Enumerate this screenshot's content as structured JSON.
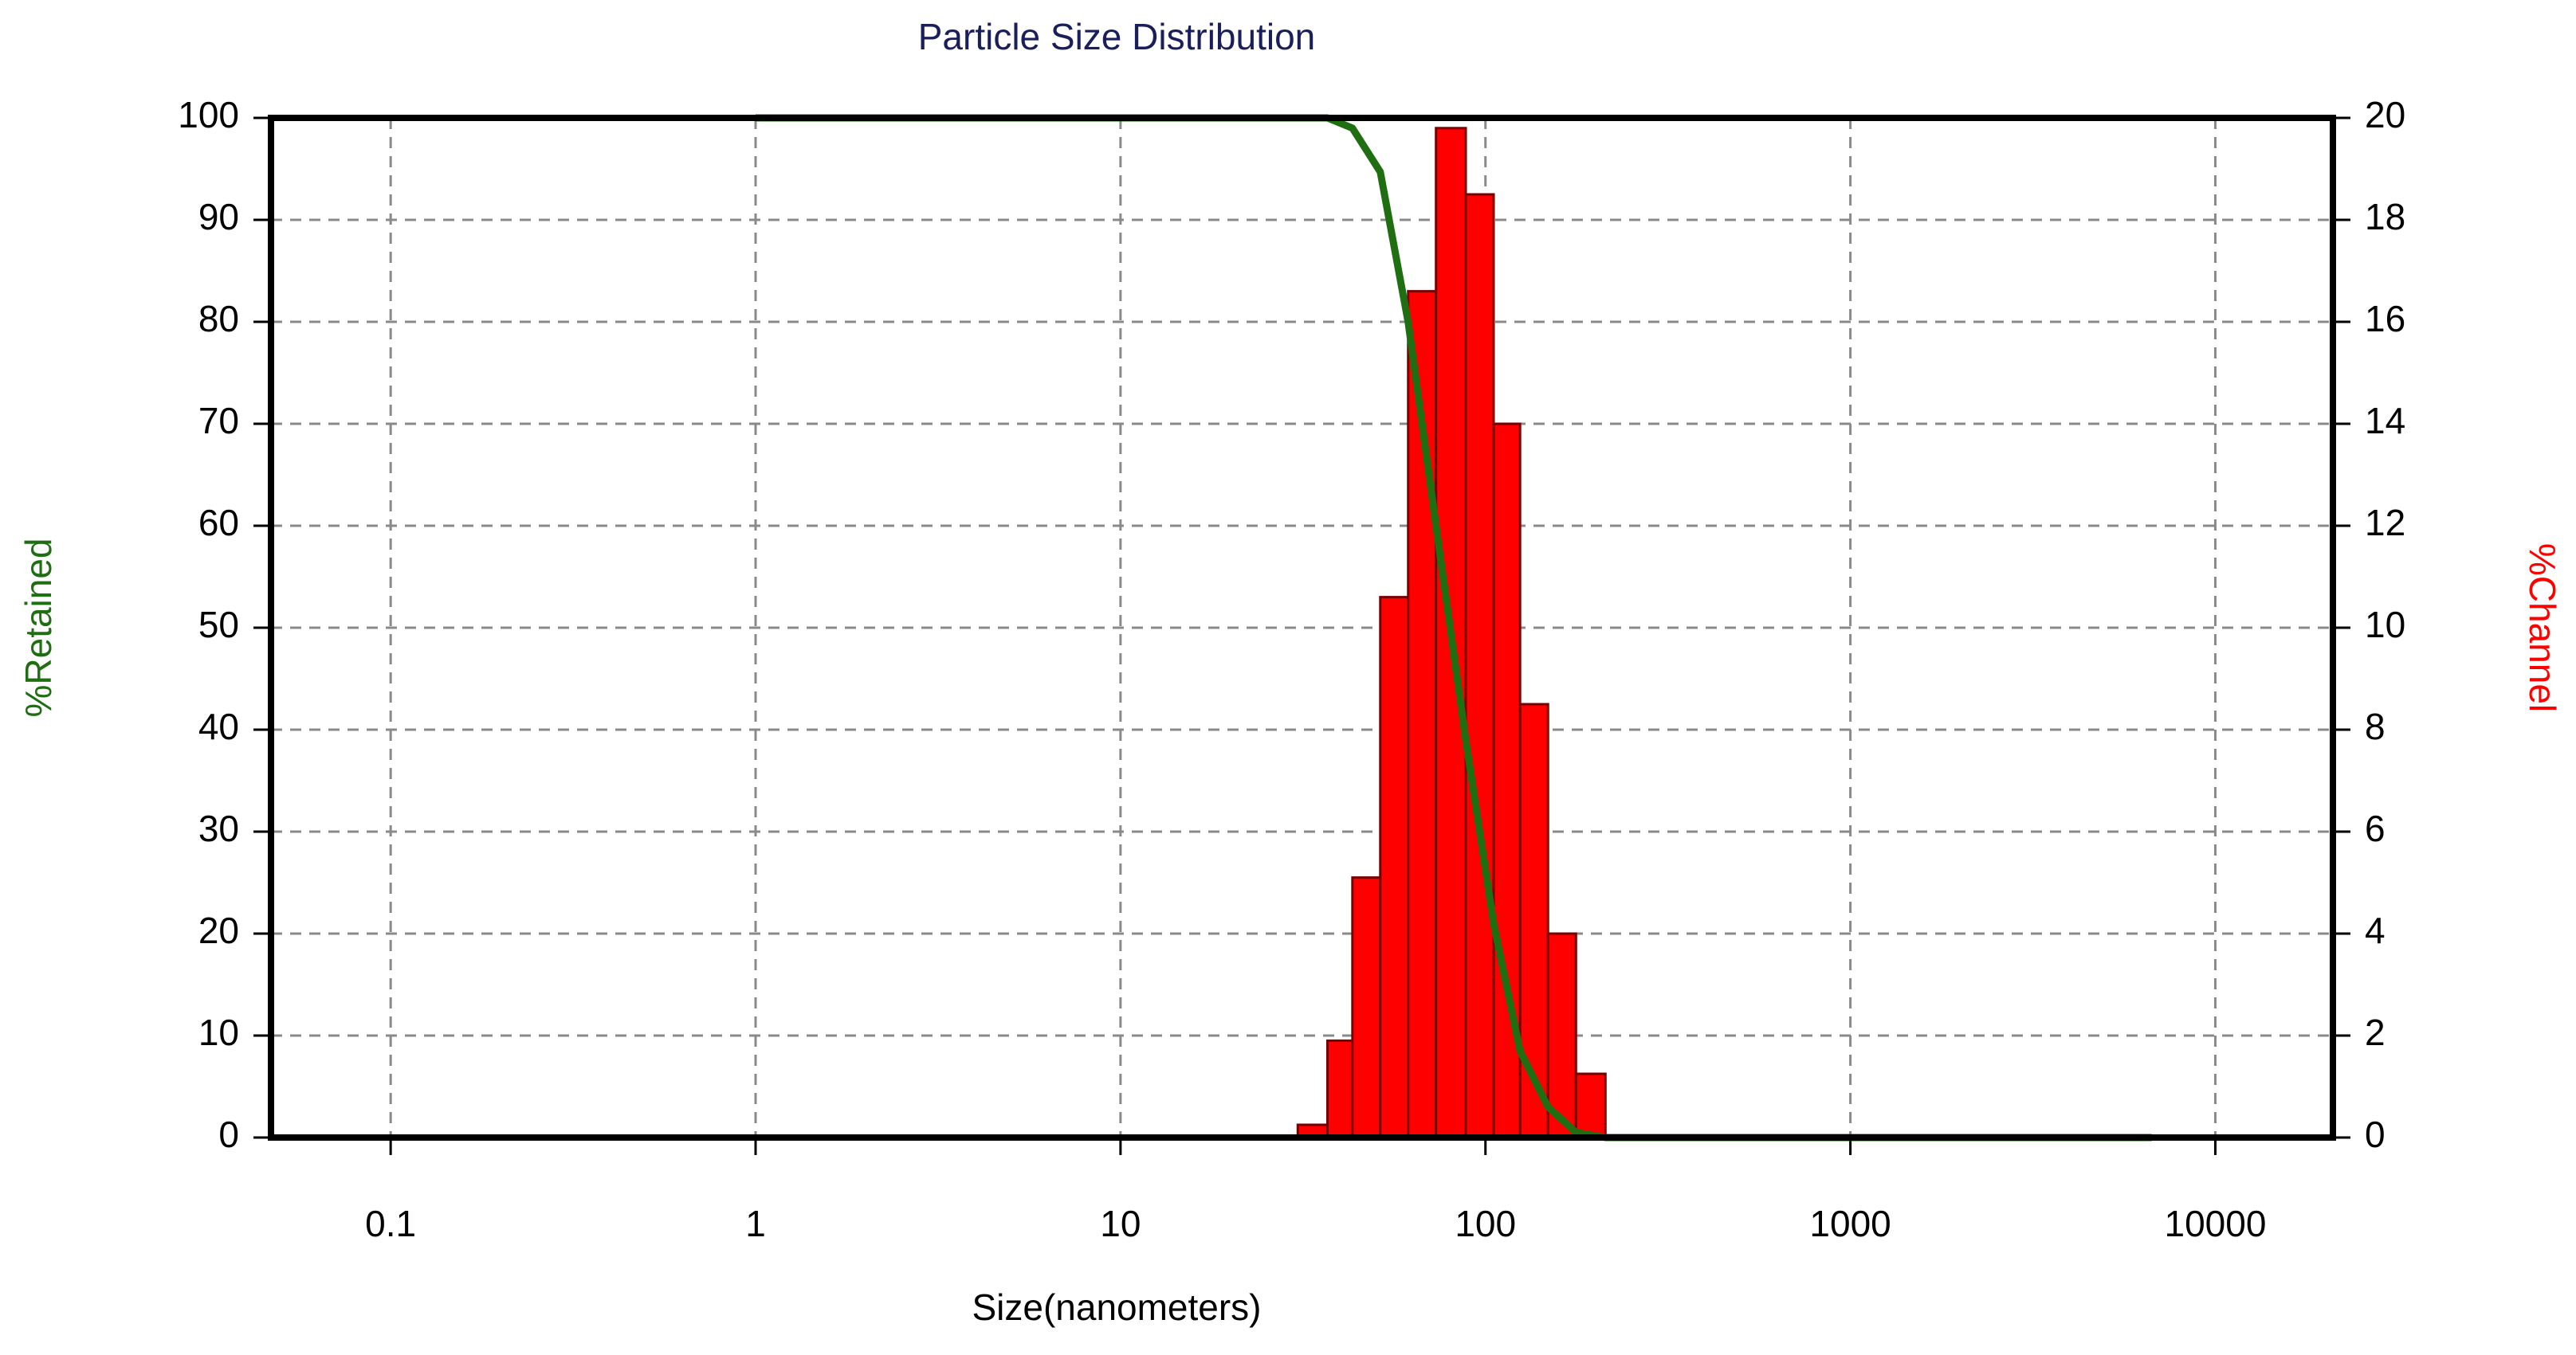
{
  "chart_data": {
    "type": "histogram",
    "title": "Particle Size Distribution",
    "x_label": "Size(nanometers)",
    "y_label": "%Retained",
    "y2_label": "%Channel",
    "xscale": "log",
    "xlim": [
      0.047,
      21000
    ],
    "xticks": [
      0.1,
      1,
      10,
      100,
      1000,
      10000
    ],
    "ylim": [
      0,
      100
    ],
    "yticks": [
      0,
      10,
      20,
      30,
      40,
      50,
      60,
      70,
      80,
      90,
      100
    ],
    "y2lim": [
      0,
      20
    ],
    "y2ticks": [
      0,
      2,
      4,
      6,
      8,
      10,
      12,
      14,
      16,
      18,
      20
    ],
    "grid": true,
    "histogram": {
      "axis": "y2",
      "color": "#ff0000",
      "bins": [
        30.6,
        36.9,
        43.2,
        51.5,
        61.4,
        73.2,
        88.3,
        105.3,
        124.4,
        148.4,
        177.0,
        213.2
      ],
      "values": [
        0.25,
        1.9,
        5.1,
        10.6,
        16.6,
        19.8,
        18.5,
        14.0,
        8.5,
        4.0,
        1.25
      ]
    },
    "line": {
      "color": "#1f6e12",
      "x": [
        1,
        36.9,
        43.2,
        51.5,
        61.4,
        73.2,
        88.3,
        105.3,
        124.4,
        148.4,
        177.0,
        213.2,
        6700
      ],
      "values": [
        100,
        100,
        99,
        94.7,
        80,
        60,
        39,
        21,
        8.5,
        3,
        0.5,
        0,
        0
      ]
    }
  }
}
